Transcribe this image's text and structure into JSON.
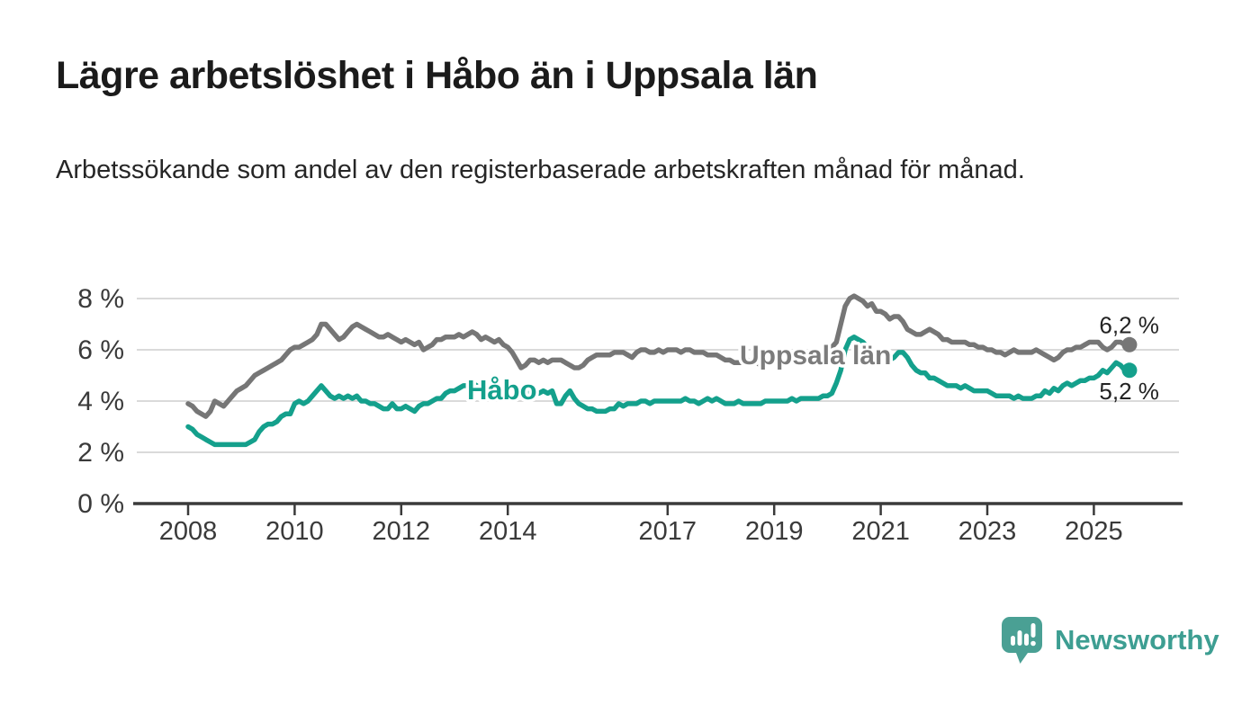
{
  "header": {
    "title": "Lägre arbetslöshet i Håbo än i Uppsala län",
    "subtitle": "Arbetssökande som andel av den registerbaserade arbetskraften månad för månad."
  },
  "chart_data": {
    "type": "line",
    "title": "Lägre arbetslöshet i Håbo än i Uppsala län",
    "frequency": "monthly",
    "start": "2008-01",
    "end": "2025-08",
    "grid": "horizontal",
    "legend": "inline-labels",
    "ylim": [
      0,
      8.6
    ],
    "y_ticks": [
      {
        "value": 0,
        "label": "0 %"
      },
      {
        "value": 2,
        "label": "2 %"
      },
      {
        "value": 4,
        "label": "4 %"
      },
      {
        "value": 6,
        "label": "6 %"
      },
      {
        "value": 8,
        "label": "8 %"
      }
    ],
    "x_ticks": [
      {
        "year": 2008,
        "label": "2008"
      },
      {
        "year": 2010,
        "label": "2010"
      },
      {
        "year": 2012,
        "label": "2012"
      },
      {
        "year": 2014,
        "label": "2014"
      },
      {
        "year": 2017,
        "label": "2017"
      },
      {
        "year": 2019,
        "label": "2019"
      },
      {
        "year": 2021,
        "label": "2021"
      },
      {
        "year": 2023,
        "label": "2023"
      },
      {
        "year": 2025,
        "label": "2025"
      }
    ],
    "series": [
      {
        "id": "uppsala-lan",
        "name": "Uppsala län",
        "color": "#767676",
        "label_color": "#7c7c7c",
        "end_label": "6,2 %",
        "values": [
          3.9,
          3.8,
          3.6,
          3.5,
          3.4,
          3.6,
          4.0,
          3.9,
          3.8,
          4.0,
          4.2,
          4.4,
          4.5,
          4.6,
          4.8,
          5.0,
          5.1,
          5.2,
          5.3,
          5.4,
          5.5,
          5.6,
          5.8,
          6.0,
          6.1,
          6.1,
          6.2,
          6.3,
          6.4,
          6.6,
          7.0,
          7.0,
          6.8,
          6.6,
          6.4,
          6.5,
          6.7,
          6.9,
          7.0,
          6.9,
          6.8,
          6.7,
          6.6,
          6.5,
          6.5,
          6.6,
          6.5,
          6.4,
          6.3,
          6.4,
          6.3,
          6.2,
          6.3,
          6.0,
          6.1,
          6.2,
          6.4,
          6.4,
          6.5,
          6.5,
          6.5,
          6.6,
          6.5,
          6.6,
          6.7,
          6.6,
          6.4,
          6.5,
          6.4,
          6.3,
          6.4,
          6.2,
          6.1,
          5.9,
          5.6,
          5.3,
          5.4,
          5.6,
          5.6,
          5.5,
          5.6,
          5.5,
          5.6,
          5.6,
          5.6,
          5.5,
          5.4,
          5.3,
          5.3,
          5.4,
          5.6,
          5.7,
          5.8,
          5.8,
          5.8,
          5.8,
          5.9,
          5.9,
          5.9,
          5.8,
          5.7,
          5.9,
          6.0,
          6.0,
          5.9,
          5.9,
          6.0,
          5.9,
          6.0,
          6.0,
          6.0,
          5.9,
          6.0,
          6.0,
          5.9,
          5.9,
          5.9,
          5.8,
          5.8,
          5.8,
          5.7,
          5.6,
          5.6,
          5.5,
          5.5,
          5.5,
          5.6,
          5.5,
          5.5,
          5.4,
          5.5,
          5.5,
          5.5,
          5.5,
          5.5,
          5.5,
          5.6,
          5.6,
          5.7,
          5.7,
          5.7,
          5.8,
          5.8,
          5.9,
          6.0,
          6.1,
          6.3,
          7.0,
          7.7,
          8.0,
          8.1,
          8.0,
          7.9,
          7.7,
          7.8,
          7.5,
          7.5,
          7.4,
          7.2,
          7.3,
          7.3,
          7.1,
          6.8,
          6.7,
          6.6,
          6.6,
          6.7,
          6.8,
          6.7,
          6.6,
          6.4,
          6.4,
          6.3,
          6.3,
          6.3,
          6.3,
          6.2,
          6.2,
          6.1,
          6.1,
          6.0,
          6.0,
          5.9,
          5.9,
          5.8,
          5.9,
          6.0,
          5.9,
          5.9,
          5.9,
          5.9,
          6.0,
          5.9,
          5.8,
          5.7,
          5.6,
          5.7,
          5.9,
          6.0,
          6.0,
          6.1,
          6.1,
          6.2,
          6.3,
          6.3,
          6.3,
          6.1,
          6.0,
          6.1,
          6.3,
          6.3,
          6.2
        ]
      },
      {
        "id": "habo",
        "name": "Håbo",
        "color": "#14a08c",
        "label_color": "#14a08c",
        "end_label": "5,2 %",
        "values": [
          3.0,
          2.9,
          2.7,
          2.6,
          2.5,
          2.4,
          2.3,
          2.3,
          2.3,
          2.3,
          2.3,
          2.3,
          2.3,
          2.3,
          2.4,
          2.5,
          2.8,
          3.0,
          3.1,
          3.1,
          3.2,
          3.4,
          3.5,
          3.5,
          3.9,
          4.0,
          3.9,
          4.0,
          4.2,
          4.4,
          4.6,
          4.4,
          4.2,
          4.1,
          4.2,
          4.1,
          4.2,
          4.1,
          4.2,
          4.0,
          4.0,
          3.9,
          3.9,
          3.8,
          3.7,
          3.7,
          3.9,
          3.7,
          3.7,
          3.8,
          3.7,
          3.6,
          3.8,
          3.9,
          3.9,
          4.0,
          4.1,
          4.1,
          4.3,
          4.4,
          4.4,
          4.5,
          4.6,
          4.6,
          4.7,
          4.6,
          4.5,
          4.4,
          4.4,
          4.3,
          4.3,
          4.3,
          4.3,
          4.2,
          4.3,
          4.3,
          4.3,
          4.3,
          4.3,
          4.3,
          4.4,
          4.3,
          4.4,
          3.9,
          3.9,
          4.2,
          4.4,
          4.1,
          3.9,
          3.8,
          3.7,
          3.7,
          3.6,
          3.6,
          3.6,
          3.7,
          3.7,
          3.9,
          3.8,
          3.9,
          3.9,
          3.9,
          4.0,
          4.0,
          3.9,
          4.0,
          4.0,
          4.0,
          4.0,
          4.0,
          4.0,
          4.0,
          4.1,
          4.0,
          4.0,
          3.9,
          4.0,
          4.1,
          4.0,
          4.1,
          4.0,
          3.9,
          3.9,
          3.9,
          4.0,
          3.9,
          3.9,
          3.9,
          3.9,
          3.9,
          4.0,
          4.0,
          4.0,
          4.0,
          4.0,
          4.0,
          4.1,
          4.0,
          4.1,
          4.1,
          4.1,
          4.1,
          4.1,
          4.2,
          4.2,
          4.3,
          4.7,
          5.2,
          6.0,
          6.4,
          6.5,
          6.4,
          6.3,
          6.1,
          5.9,
          5.8,
          5.6,
          5.6,
          5.6,
          5.7,
          5.9,
          5.9,
          5.7,
          5.4,
          5.2,
          5.1,
          5.1,
          4.9,
          4.9,
          4.8,
          4.7,
          4.6,
          4.6,
          4.6,
          4.5,
          4.6,
          4.5,
          4.4,
          4.4,
          4.4,
          4.4,
          4.3,
          4.2,
          4.2,
          4.2,
          4.2,
          4.1,
          4.2,
          4.1,
          4.1,
          4.1,
          4.2,
          4.2,
          4.4,
          4.3,
          4.5,
          4.4,
          4.6,
          4.7,
          4.6,
          4.7,
          4.8,
          4.8,
          4.9,
          4.9,
          5.0,
          5.2,
          5.1,
          5.3,
          5.5,
          5.4,
          5.2
        ]
      }
    ]
  },
  "branding": {
    "logo_text": "Newsworthy",
    "logo_icon": "bar-chart-speech-bubble-icon",
    "color": "#3d9e92"
  },
  "colors": {
    "background": "#ffffff",
    "gridline": "#dadada",
    "axis": "#3a3a3a",
    "tick_label": "#3a3a3a",
    "end_label": "#232323"
  }
}
